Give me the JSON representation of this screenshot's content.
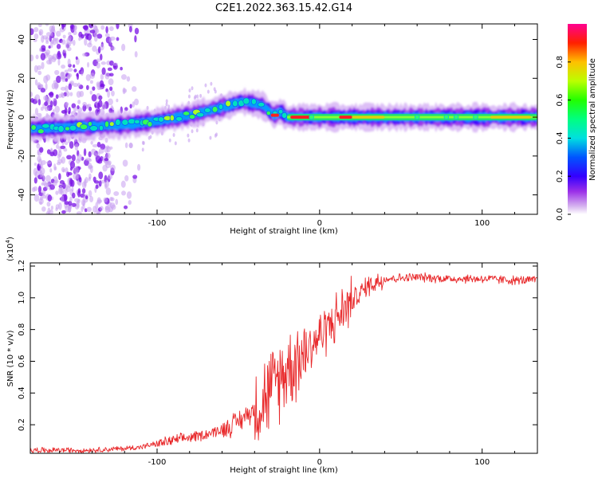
{
  "title": "C2E1.2022.363.15.42.G14",
  "chart_data": [
    {
      "type": "heatmap",
      "title": "",
      "xlabel": "Height of straight line (km)",
      "ylabel": "Frequency (Hz)",
      "xlim": [
        -178,
        134
      ],
      "ylim": [
        -50,
        48
      ],
      "xticks": [
        -100,
        0,
        100
      ],
      "xtick_labels": [
        "-100",
        "0",
        "100"
      ],
      "yticks": [
        -40,
        -20,
        0,
        20,
        40
      ],
      "ytick_labels": [
        "-40",
        "-20",
        "0",
        "20",
        "40"
      ],
      "ridge": {
        "x": [
          -178,
          -150,
          -120,
          -100,
          -80,
          -60,
          -48,
          -40,
          -35,
          -28,
          -24,
          -20,
          -10,
          0,
          20,
          60,
          100,
          134
        ],
        "frequency": [
          -6,
          -5,
          -4,
          -2,
          1,
          5,
          8,
          7,
          6,
          1,
          3,
          0,
          0,
          0,
          0,
          0,
          0,
          0
        ]
      },
      "colorbar": {
        "label": "Normalized spectral amplitude",
        "range": [
          0.0,
          1.0
        ],
        "ticks": [
          0.0,
          0.2,
          0.4,
          0.6,
          0.8
        ],
        "tick_labels": [
          "0.0",
          "0.2",
          "0.4",
          "0.6",
          "0.8"
        ]
      }
    },
    {
      "type": "line",
      "title": "",
      "xlabel": "Height of straight line (km)",
      "ylabel": "SNR (10 * v/v)",
      "multiplier_label": "(x10",
      "multiplier_exp": "4",
      "multiplier_close": ")",
      "xlim": [
        -178,
        134
      ],
      "ylim": [
        0.02,
        1.22
      ],
      "xticks": [
        -100,
        0,
        100
      ],
      "xtick_labels": [
        "-100",
        "0",
        "100"
      ],
      "yticks": [
        0.2,
        0.4,
        0.6,
        0.8,
        1.0,
        1.2
      ],
      "ytick_labels": [
        "0.2",
        "0.4",
        "0.6",
        "0.8",
        "1.0",
        "1.2"
      ],
      "series": [
        {
          "name": "SNR",
          "color": "#e8282a",
          "x": [
            -178,
            -160,
            -140,
            -120,
            -110,
            -100,
            -90,
            -80,
            -70,
            -60,
            -50,
            -40,
            -30,
            -20,
            -10,
            0,
            10,
            20,
            30,
            40,
            60,
            80,
            100,
            120,
            134
          ],
          "y": [
            0.04,
            0.04,
            0.04,
            0.05,
            0.06,
            0.08,
            0.1,
            0.12,
            0.14,
            0.17,
            0.22,
            0.3,
            0.42,
            0.56,
            0.65,
            0.76,
            0.87,
            0.98,
            1.08,
            1.12,
            1.13,
            1.12,
            1.12,
            1.11,
            1.11
          ]
        }
      ]
    }
  ]
}
